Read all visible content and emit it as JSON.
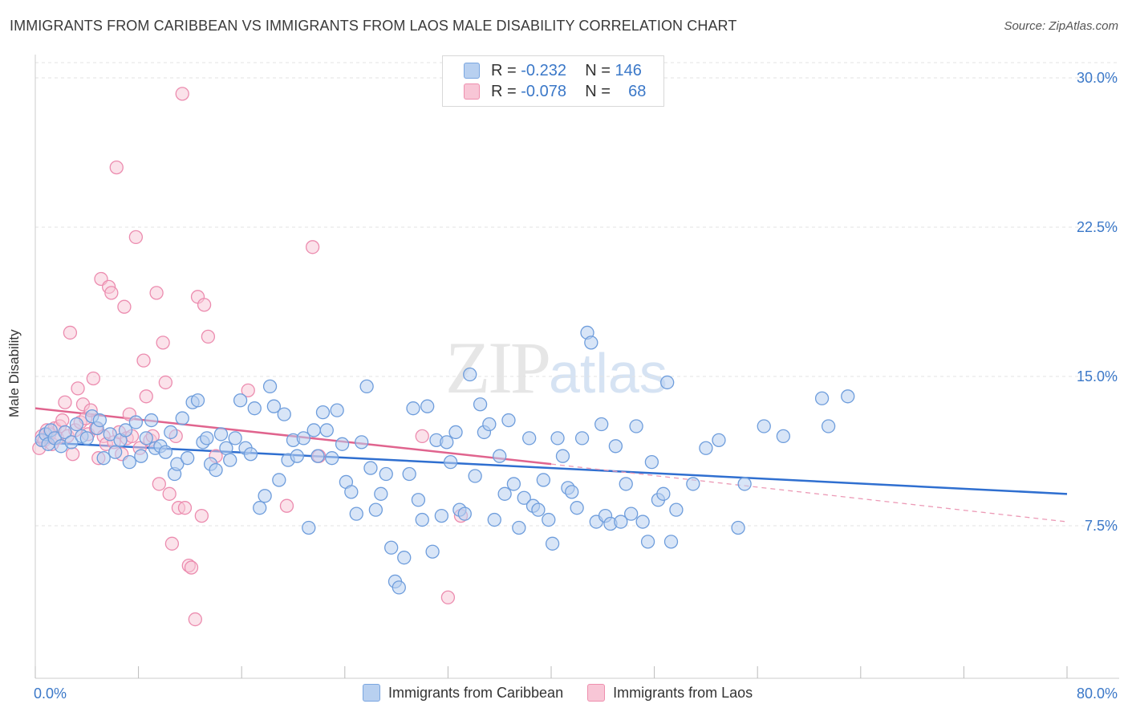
{
  "title": "IMMIGRANTS FROM CARIBBEAN VS IMMIGRANTS FROM LAOS MALE DISABILITY CORRELATION CHART",
  "source": "Source: ZipAtlas.com",
  "watermark": {
    "zip": "ZIP",
    "atlas": "atlas"
  },
  "legend": {
    "r_label": "R =",
    "n_label": "N =",
    "rows": [
      {
        "name": "Immigrants from Caribbean",
        "r": "-0.232",
        "n": "146",
        "color": "#7aa6e0",
        "fill": "#b8d0f0"
      },
      {
        "name": "Immigrants from Laos",
        "r": "-0.078",
        "n": "68",
        "color": "#ee8fae",
        "fill": "#f8c6d6"
      }
    ]
  },
  "chart_data": {
    "type": "scatter",
    "title": "IMMIGRANTS FROM CARIBBEAN VS IMMIGRANTS FROM LAOS MALE DISABILITY CORRELATION CHART",
    "xlabel": "",
    "ylabel": "Male Disability",
    "xlim": [
      0,
      80
    ],
    "ylim": [
      0,
      31
    ],
    "x_tick_labels": [
      "0.0%",
      "80.0%"
    ],
    "y_ticks": [
      7.5,
      15.0,
      22.5,
      30.0
    ],
    "y_tick_labels": [
      "7.5%",
      "15.0%",
      "22.5%",
      "30.0%"
    ],
    "grid": true,
    "legend_position": "top-center",
    "series": [
      {
        "name": "Immigrants from Caribbean",
        "color": "#3b78d0",
        "trend": {
          "x": [
            0,
            80
          ],
          "y": [
            11.7,
            9.1
          ]
        },
        "points": [
          [
            0.5,
            11.8
          ],
          [
            0.8,
            12.1
          ],
          [
            1.0,
            11.6
          ],
          [
            1.2,
            12.3
          ],
          [
            1.5,
            11.9
          ],
          [
            2.0,
            11.5
          ],
          [
            2.3,
            12.2
          ],
          [
            2.8,
            11.7
          ],
          [
            3.2,
            12.6
          ],
          [
            3.6,
            12.0
          ],
          [
            4.0,
            11.9
          ],
          [
            4.4,
            13.0
          ],
          [
            4.8,
            12.4
          ],
          [
            5.0,
            12.8
          ],
          [
            5.3,
            10.9
          ],
          [
            5.8,
            12.1
          ],
          [
            6.2,
            11.2
          ],
          [
            6.6,
            11.8
          ],
          [
            7.0,
            12.3
          ],
          [
            7.3,
            10.7
          ],
          [
            7.8,
            12.7
          ],
          [
            8.2,
            11.0
          ],
          [
            8.6,
            11.9
          ],
          [
            9.0,
            12.8
          ],
          [
            9.3,
            11.4
          ],
          [
            9.7,
            11.5
          ],
          [
            10.1,
            11.2
          ],
          [
            10.5,
            12.2
          ],
          [
            10.8,
            10.1
          ],
          [
            11.0,
            10.6
          ],
          [
            11.4,
            12.9
          ],
          [
            11.8,
            10.9
          ],
          [
            12.2,
            13.7
          ],
          [
            12.6,
            13.8
          ],
          [
            13.0,
            11.7
          ],
          [
            13.3,
            11.9
          ],
          [
            13.6,
            10.6
          ],
          [
            14.0,
            10.3
          ],
          [
            14.4,
            12.1
          ],
          [
            14.8,
            11.4
          ],
          [
            15.1,
            10.8
          ],
          [
            15.5,
            11.9
          ],
          [
            15.9,
            13.8
          ],
          [
            16.3,
            11.4
          ],
          [
            16.7,
            11.1
          ],
          [
            17.0,
            13.4
          ],
          [
            17.4,
            8.4
          ],
          [
            17.8,
            9.0
          ],
          [
            18.2,
            14.5
          ],
          [
            18.5,
            13.5
          ],
          [
            18.9,
            9.8
          ],
          [
            19.3,
            13.1
          ],
          [
            19.6,
            10.8
          ],
          [
            20.0,
            11.8
          ],
          [
            20.3,
            11.0
          ],
          [
            20.8,
            11.9
          ],
          [
            21.2,
            7.4
          ],
          [
            21.6,
            12.3
          ],
          [
            21.9,
            11.0
          ],
          [
            22.3,
            13.2
          ],
          [
            22.6,
            12.3
          ],
          [
            23.0,
            10.9
          ],
          [
            23.4,
            13.3
          ],
          [
            23.8,
            11.6
          ],
          [
            24.1,
            9.7
          ],
          [
            24.5,
            9.2
          ],
          [
            24.9,
            8.1
          ],
          [
            25.3,
            11.7
          ],
          [
            25.7,
            14.5
          ],
          [
            26.0,
            10.4
          ],
          [
            26.4,
            8.3
          ],
          [
            26.8,
            9.1
          ],
          [
            27.2,
            10.1
          ],
          [
            27.6,
            6.4
          ],
          [
            27.9,
            4.7
          ],
          [
            28.2,
            4.4
          ],
          [
            28.6,
            5.9
          ],
          [
            29.0,
            10.1
          ],
          [
            29.3,
            13.4
          ],
          [
            29.7,
            8.8
          ],
          [
            30.0,
            7.8
          ],
          [
            30.4,
            13.5
          ],
          [
            30.8,
            6.2
          ],
          [
            31.1,
            11.8
          ],
          [
            31.5,
            8.0
          ],
          [
            31.9,
            11.7
          ],
          [
            32.2,
            10.7
          ],
          [
            32.6,
            12.2
          ],
          [
            32.9,
            8.3
          ],
          [
            33.3,
            8.1
          ],
          [
            33.7,
            15.1
          ],
          [
            34.1,
            10.0
          ],
          [
            34.5,
            13.6
          ],
          [
            34.8,
            12.2
          ],
          [
            35.2,
            12.6
          ],
          [
            35.6,
            7.8
          ],
          [
            36.0,
            11.0
          ],
          [
            36.4,
            9.1
          ],
          [
            36.7,
            12.8
          ],
          [
            37.1,
            9.6
          ],
          [
            37.5,
            7.4
          ],
          [
            37.9,
            8.9
          ],
          [
            38.3,
            11.9
          ],
          [
            38.6,
            8.5
          ],
          [
            39.0,
            8.3
          ],
          [
            39.4,
            9.8
          ],
          [
            39.8,
            7.8
          ],
          [
            40.1,
            6.6
          ],
          [
            40.5,
            11.9
          ],
          [
            40.9,
            11.0
          ],
          [
            41.3,
            9.4
          ],
          [
            41.6,
            9.2
          ],
          [
            42.0,
            8.4
          ],
          [
            42.4,
            11.9
          ],
          [
            42.8,
            17.2
          ],
          [
            43.1,
            16.7
          ],
          [
            43.5,
            7.7
          ],
          [
            43.9,
            12.6
          ],
          [
            44.2,
            8.0
          ],
          [
            44.6,
            7.6
          ],
          [
            45.0,
            11.5
          ],
          [
            45.4,
            7.7
          ],
          [
            45.8,
            9.6
          ],
          [
            46.2,
            8.1
          ],
          [
            46.6,
            12.5
          ],
          [
            47.1,
            7.7
          ],
          [
            47.5,
            6.7
          ],
          [
            47.8,
            10.7
          ],
          [
            48.3,
            8.8
          ],
          [
            48.7,
            9.1
          ],
          [
            49.0,
            14.7
          ],
          [
            49.3,
            6.7
          ],
          [
            49.7,
            8.3
          ],
          [
            51.0,
            9.6
          ],
          [
            52.0,
            11.4
          ],
          [
            53.0,
            11.8
          ],
          [
            54.5,
            7.4
          ],
          [
            55.0,
            9.6
          ],
          [
            56.5,
            12.5
          ],
          [
            58.0,
            12.0
          ],
          [
            61.0,
            13.9
          ],
          [
            61.5,
            12.5
          ],
          [
            63.0,
            14.0
          ]
        ]
      },
      {
        "name": "Immigrants from Laos",
        "color": "#e0648e",
        "trend": {
          "x": [
            0,
            40
          ],
          "y": [
            13.4,
            10.6
          ]
        },
        "trend_extension": {
          "x": [
            40,
            80
          ],
          "y": [
            10.6,
            7.7
          ]
        },
        "points": [
          [
            0.3,
            11.4
          ],
          [
            0.5,
            12.0
          ],
          [
            0.7,
            11.8
          ],
          [
            0.9,
            12.3
          ],
          [
            1.1,
            12.1
          ],
          [
            1.3,
            11.6
          ],
          [
            1.5,
            12.4
          ],
          [
            1.7,
            11.9
          ],
          [
            1.9,
            12.5
          ],
          [
            2.1,
            12.8
          ],
          [
            2.3,
            13.7
          ],
          [
            2.5,
            12.0
          ],
          [
            2.7,
            17.2
          ],
          [
            2.9,
            11.1
          ],
          [
            3.1,
            12.3
          ],
          [
            3.3,
            14.4
          ],
          [
            3.5,
            12.7
          ],
          [
            3.7,
            13.6
          ],
          [
            3.9,
            12.9
          ],
          [
            4.1,
            12.1
          ],
          [
            4.3,
            13.3
          ],
          [
            4.5,
            14.9
          ],
          [
            4.7,
            12.4
          ],
          [
            4.9,
            10.9
          ],
          [
            5.1,
            19.9
          ],
          [
            5.3,
            12.0
          ],
          [
            5.5,
            11.6
          ],
          [
            5.7,
            19.5
          ],
          [
            5.9,
            19.2
          ],
          [
            6.1,
            11.7
          ],
          [
            6.3,
            25.5
          ],
          [
            6.5,
            12.2
          ],
          [
            6.7,
            11.1
          ],
          [
            6.9,
            18.5
          ],
          [
            7.1,
            11.9
          ],
          [
            7.3,
            13.1
          ],
          [
            7.5,
            12.0
          ],
          [
            7.8,
            22.0
          ],
          [
            8.1,
            11.4
          ],
          [
            8.4,
            15.8
          ],
          [
            8.6,
            14.0
          ],
          [
            8.9,
            11.8
          ],
          [
            9.1,
            12.0
          ],
          [
            9.4,
            19.2
          ],
          [
            9.6,
            9.6
          ],
          [
            9.9,
            16.7
          ],
          [
            10.1,
            14.7
          ],
          [
            10.4,
            9.1
          ],
          [
            10.6,
            6.6
          ],
          [
            10.9,
            12.0
          ],
          [
            11.1,
            8.4
          ],
          [
            11.4,
            29.2
          ],
          [
            11.6,
            8.4
          ],
          [
            11.9,
            5.5
          ],
          [
            12.1,
            5.4
          ],
          [
            12.4,
            2.8
          ],
          [
            12.6,
            19.0
          ],
          [
            12.9,
            8.0
          ],
          [
            13.1,
            18.6
          ],
          [
            13.4,
            17.0
          ],
          [
            14.0,
            11.0
          ],
          [
            16.5,
            14.3
          ],
          [
            19.5,
            8.5
          ],
          [
            21.5,
            21.5
          ],
          [
            22.0,
            11.0
          ],
          [
            30.0,
            12.0
          ],
          [
            32.0,
            3.9
          ],
          [
            33.0,
            8.0
          ]
        ]
      }
    ]
  }
}
